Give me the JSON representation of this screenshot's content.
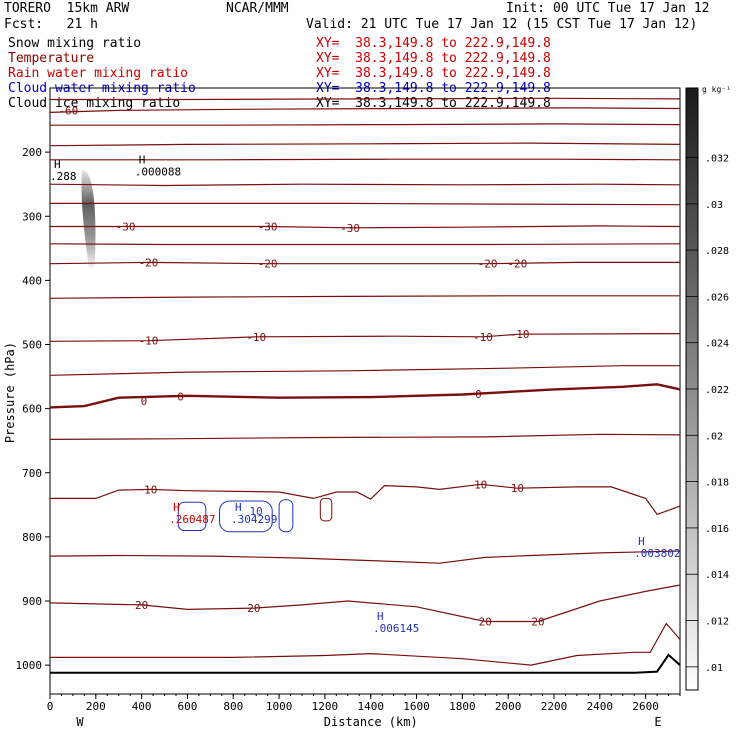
{
  "header": {
    "model": "TORERO  15km ARW",
    "center": "NCAR/MMM",
    "init": "Init: 00 UTC Tue 17 Jan 12",
    "fcst": "Fcst:   21 h",
    "valid": "Valid: 21 UTC Tue 17 Jan 12 (15 CST Tue 17 Jan 12)"
  },
  "fields": [
    {
      "name": "Snow mixing ratio",
      "xy": "XY=  38.3,149.8 to 222.9,149.8",
      "color": "#000000",
      "xy_color": "#cc0000"
    },
    {
      "name": "Temperature",
      "xy": "XY=  38.3,149.8 to 222.9,149.8",
      "color": "#8b0000",
      "xy_color": "#cc0000"
    },
    {
      "name": "Rain water mixing ratio",
      "xy": "XY=  38.3,149.8 to 222.9,149.8",
      "color": "#cc0000",
      "xy_color": "#cc0000"
    },
    {
      "name": "Cloud water mixing ratio",
      "xy": "XY=  38.3,149.8 to 222.9,149.8",
      "color": "#0000cc",
      "xy_color": "#0000cc"
    },
    {
      "name": "Cloud ice mixing ratio",
      "xy": "XY=  38.3,149.8 to 222.9,149.8",
      "color": "#000000",
      "xy_color": "#000000"
    }
  ],
  "colors": {
    "temperature": "#7a0f0f",
    "cloud_water": "#2233bb",
    "terrain": "#000000",
    "snow_shade": "#555555"
  },
  "chart_data": {
    "type": "contour-cross-section",
    "xlabel": "Distance (km)",
    "ylabel": "Pressure (hPa)",
    "xlim": [
      0,
      2750
    ],
    "ylim": [
      1045,
      100
    ],
    "x_ticks": [
      0,
      200,
      400,
      600,
      800,
      1000,
      1200,
      1400,
      1600,
      1800,
      2000,
      2200,
      2400,
      2600
    ],
    "y_ticks": [
      200,
      300,
      400,
      500,
      600,
      700,
      800,
      900,
      1000
    ],
    "x_end_labels": {
      "left": "W",
      "right": "E"
    },
    "temperature_contour_interval_C": 5,
    "temperature_labels": [
      {
        "text": "-60",
        "x": 80,
        "p": 135
      },
      {
        "text": "-30",
        "x": 330,
        "p": 316
      },
      {
        "text": "-30",
        "x": 950,
        "p": 316
      },
      {
        "text": "-30",
        "x": 1310,
        "p": 318
      },
      {
        "text": "-20",
        "x": 430,
        "p": 372
      },
      {
        "text": "-20",
        "x": 950,
        "p": 374
      },
      {
        "text": "-20",
        "x": 1910,
        "p": 374
      },
      {
        "text": "-20",
        "x": 2040,
        "p": 374
      },
      {
        "text": "-10",
        "x": 430,
        "p": 494
      },
      {
        "text": "-10",
        "x": 900,
        "p": 488
      },
      {
        "text": "-10",
        "x": 1890,
        "p": 488
      },
      {
        "text": "-10",
        "x": 2050,
        "p": 484
      },
      {
        "text": "0",
        "x": 410,
        "p": 588
      },
      {
        "text": "0",
        "x": 570,
        "p": 581
      },
      {
        "text": "0",
        "x": 1870,
        "p": 577
      },
      {
        "text": "10",
        "x": 440,
        "p": 726
      },
      {
        "text": "10",
        "x": 1880,
        "p": 718
      },
      {
        "text": "10",
        "x": 2040,
        "p": 724
      },
      {
        "text": "20",
        "x": 400,
        "p": 906
      },
      {
        "text": "20",
        "x": 890,
        "p": 911
      },
      {
        "text": "20",
        "x": 1900,
        "p": 932
      },
      {
        "text": "20",
        "x": 2130,
        "p": 932
      }
    ],
    "maxima_labels": [
      {
        "mark": "H",
        "value": ".000088",
        "x": 370,
        "p": 233,
        "field": "snow"
      },
      {
        "mark": "H",
        "value": ".288",
        "x": 0,
        "p": 240,
        "field": "cloud_ice"
      },
      {
        "mark": "H",
        "value": ".260487",
        "x": 520,
        "p": 775,
        "field": "rain"
      },
      {
        "mark": "H",
        "value": ".304299",
        "x": 790,
        "p": 775,
        "field": "cloud_water"
      },
      {
        "mark": "H",
        "value": ".003802",
        "x": 2550,
        "p": 828,
        "field": "cloud_water"
      },
      {
        "mark": "H",
        "value": ".006145",
        "x": 1410,
        "p": 945,
        "field": "cloud_water"
      }
    ],
    "cloud_water_label": {
      "text": "10",
      "x": 900,
      "p": 760
    },
    "colorbar": {
      "units": "g kg⁻¹",
      "ticks": [
        0.01,
        0.012,
        0.014,
        0.016,
        0.018,
        0.02,
        0.022,
        0.024,
        0.026,
        0.028,
        0.03,
        0.032
      ],
      "tick_labels": [
        ".01",
        ".012",
        ".014",
        ".016",
        ".018",
        ".02",
        ".022",
        ".024",
        ".026",
        ".028",
        ".03",
        ".032"
      ],
      "range": [
        0.009,
        0.035
      ]
    }
  }
}
